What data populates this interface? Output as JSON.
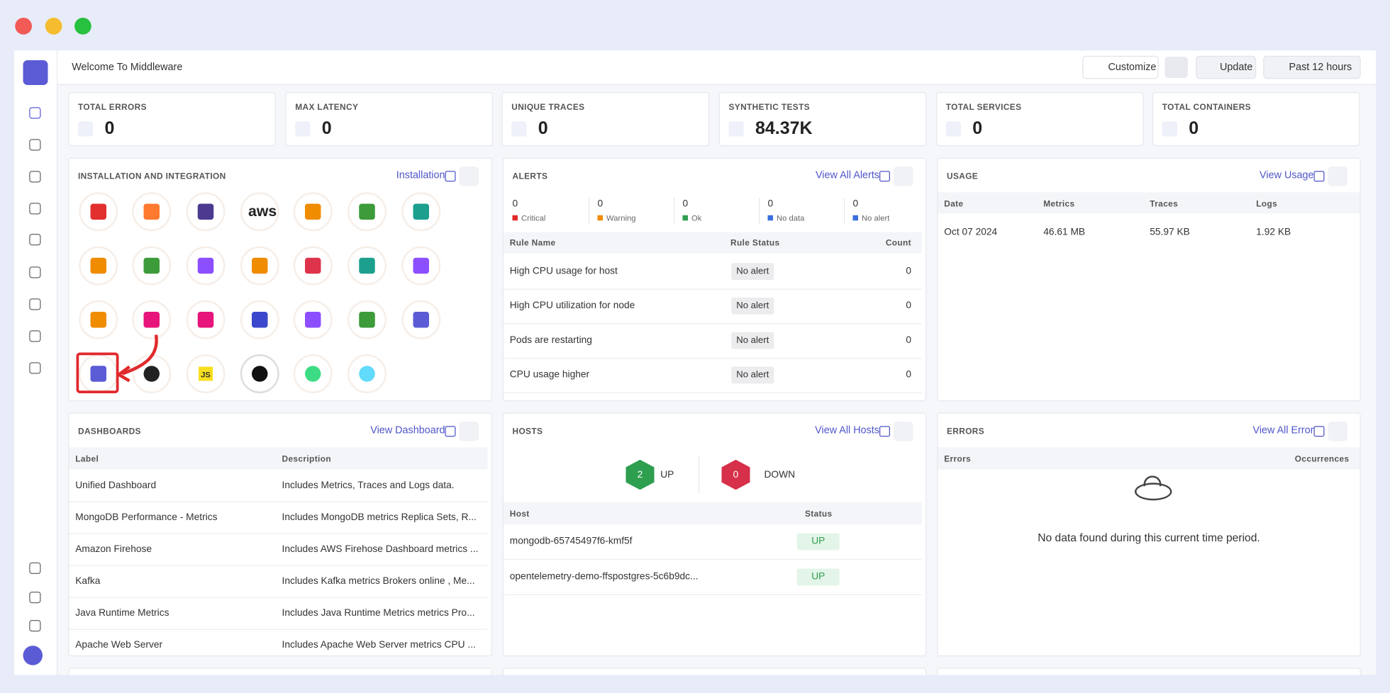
{
  "header": {
    "title": "Welcome To Middleware",
    "buttons": [
      "Customize",
      "Update",
      "Past 12 hours"
    ]
  },
  "stats": [
    {
      "label": "TOTAL ERRORS",
      "value": "0"
    },
    {
      "label": "MAX LATENCY",
      "value": "0"
    },
    {
      "label": "UNIQUE TRACES",
      "value": "0"
    },
    {
      "label": "SYNTHETIC TESTS",
      "value": "84.37K"
    },
    {
      "label": "TOTAL SERVICES",
      "value": "0"
    },
    {
      "label": "TOTAL CONTAINERS",
      "value": "0"
    }
  ],
  "installation": {
    "title": "INSTALLATION AND INTEGRATION",
    "link": "Installation",
    "icon_texts": [
      "aws",
      "JS"
    ]
  },
  "alerts": {
    "title": "ALERTS",
    "link": "View All Alerts",
    "summary": [
      {
        "count": 0,
        "label": "Critical"
      },
      {
        "count": 0,
        "label": "Warning"
      },
      {
        "count": 0,
        "label": "Ok"
      },
      {
        "count": 0,
        "label": "No data"
      },
      {
        "count": 0,
        "label": "No alert"
      }
    ],
    "columns": [
      "Rule Name",
      "Rule Status",
      "Count"
    ],
    "rows": [
      [
        "High CPU usage for host",
        "No alert",
        0
      ],
      [
        "High CPU utilization for node",
        "No alert",
        0
      ],
      [
        "Pods are restarting",
        "No alert",
        0
      ],
      [
        "CPU usage higher",
        "No alert",
        0
      ]
    ]
  },
  "usage": {
    "title": "USAGE",
    "link": "View Usage",
    "columns": [
      "Date",
      "Metrics",
      "Traces",
      "Logs"
    ],
    "rows": [
      [
        "Oct 07 2024",
        "46.61 MB",
        "55.97 KB",
        "1.92 KB"
      ]
    ]
  },
  "dashboards": {
    "title": "DASHBOARDS",
    "link": "View Dashboard",
    "columns": [
      "Label",
      "Description"
    ],
    "rows": [
      [
        "Unified Dashboard",
        "Includes Metrics, Traces and Logs data."
      ],
      [
        "MongoDB Performance - Metrics",
        "Includes MongoDB metrics Replica Sets, R..."
      ],
      [
        "Amazon Firehose",
        "Includes AWS Firehose Dashboard metrics ..."
      ],
      [
        "Kafka",
        "Includes Kafka metrics Brokers online , Me..."
      ],
      [
        "Java Runtime Metrics",
        "Includes Java Runtime Metrics metrics Pro..."
      ],
      [
        "Apache Web Server",
        "Includes Apache Web Server metrics CPU ..."
      ]
    ]
  },
  "hosts": {
    "title": "HOSTS",
    "link": "View All Hosts",
    "up": {
      "count": 2,
      "label": "UP"
    },
    "down": {
      "count": 0,
      "label": "DOWN"
    },
    "columns": [
      "Host",
      "Status"
    ],
    "rows": [
      [
        "mongodb-65745497f6-kmf5f",
        "UP"
      ],
      [
        "opentelemetry-demo-ffspostgres-5c6b9dc...",
        "UP"
      ]
    ]
  },
  "errors": {
    "title": "ERRORS",
    "link": "View All Error",
    "columns": [
      "Errors",
      "Occurrences"
    ],
    "message": "No data found during this current time period."
  }
}
